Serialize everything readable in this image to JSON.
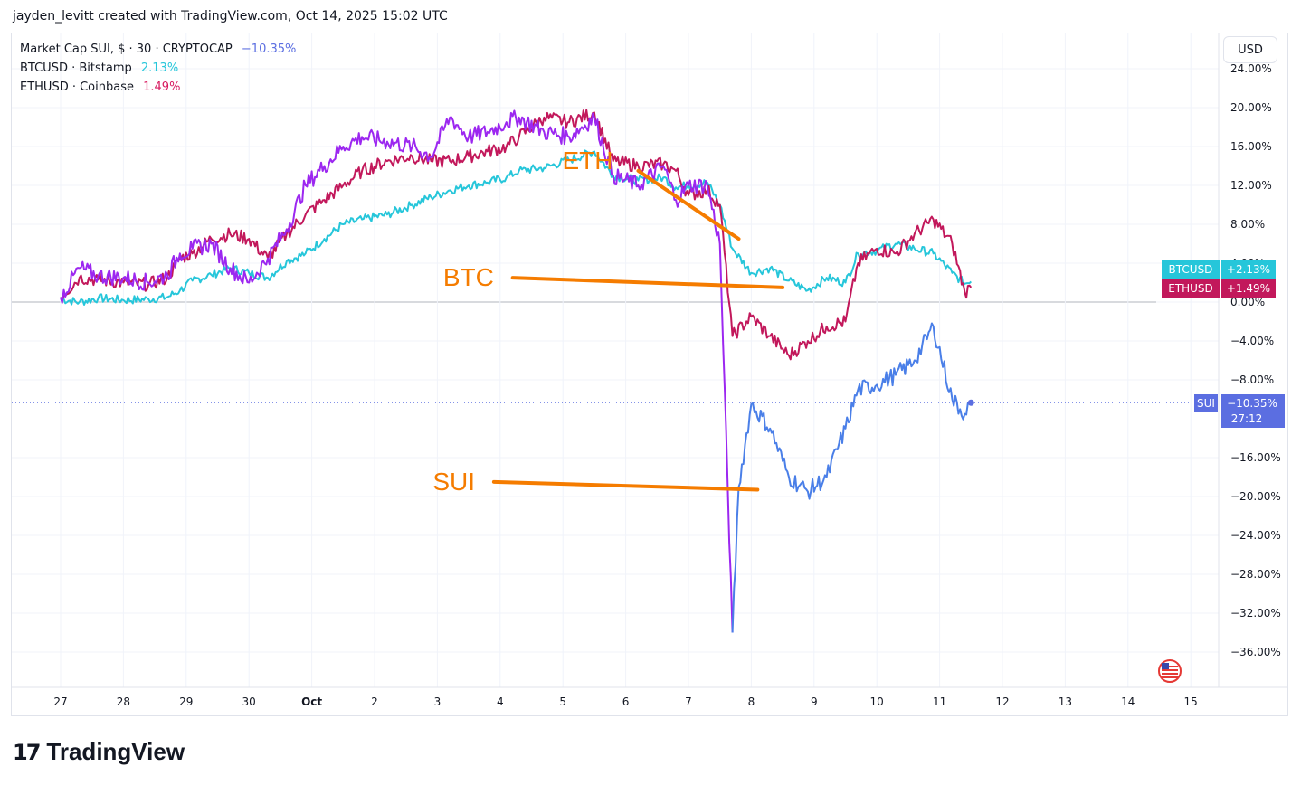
{
  "header": {
    "credit": "jayden_levitt created with TradingView.com, Oct 14, 2025 15:02 UTC"
  },
  "legend": [
    {
      "label": "Market Cap SUI, $ · 30 · CRYPTOCAP",
      "value": "−10.35%",
      "color": "#5b6ee1"
    },
    {
      "label": "BTCUSD · Bitstamp",
      "value": "2.13%",
      "color": "#26c6da"
    },
    {
      "label": "ETHUSD · Coinbase",
      "value": "1.49%",
      "color": "#d81b60"
    }
  ],
  "currency_button": "USD",
  "footer": {
    "logo_mark": "17",
    "logo_text": "TradingView"
  },
  "colors": {
    "btc": "#26c6da",
    "eth": "#c2185b",
    "eth_alt": "#9c27f0",
    "sui": "#5b6ee1",
    "annotation": "#f57c00",
    "grid": "#f0f3fa"
  },
  "flag_icon": "us-flag-icon",
  "chart_data": {
    "type": "line",
    "xlabel": "",
    "ylabel": "",
    "y_unit": "%",
    "ylim": [
      -40,
      24
    ],
    "grid": true,
    "x_ticks": [
      "27",
      "28",
      "29",
      "30",
      "Oct",
      "2",
      "3",
      "4",
      "5",
      "6",
      "7",
      "8",
      "9",
      "10",
      "11",
      "12",
      "13",
      "14",
      "15"
    ],
    "y_ticks": [
      "24.00%",
      "20.00%",
      "16.00%",
      "12.00%",
      "8.00%",
      "4.00%",
      "0.00%",
      "−4.00%",
      "−8.00%",
      "−16.00%",
      "−20.00%",
      "−24.00%",
      "−28.00%",
      "−32.00%",
      "−36.00%"
    ],
    "series": [
      {
        "name": "BTCUSD",
        "color": "#26c6da",
        "last_label": "+2.13%",
        "points": [
          [
            0,
            0.3
          ],
          [
            0.3,
            0.0
          ],
          [
            0.6,
            0.4
          ],
          [
            1.0,
            0.2
          ],
          [
            1.4,
            0.3
          ],
          [
            1.7,
            0.5
          ],
          [
            1.9,
            1.2
          ],
          [
            2.1,
            2.2
          ],
          [
            2.4,
            2.8
          ],
          [
            2.7,
            3.5
          ],
          [
            3.0,
            3.0
          ],
          [
            3.3,
            2.5
          ],
          [
            3.6,
            4.2
          ],
          [
            3.9,
            5.0
          ],
          [
            4.2,
            6.5
          ],
          [
            4.5,
            8.0
          ],
          [
            4.8,
            8.5
          ],
          [
            5.2,
            9.0
          ],
          [
            5.6,
            10.0
          ],
          [
            5.9,
            10.8
          ],
          [
            6.2,
            11.5
          ],
          [
            6.5,
            12.0
          ],
          [
            6.8,
            12.3
          ],
          [
            7.1,
            12.8
          ],
          [
            7.3,
            13.5
          ],
          [
            7.7,
            13.8
          ],
          [
            8.1,
            14.6
          ],
          [
            8.5,
            15.5
          ],
          [
            8.8,
            13.0
          ],
          [
            9.2,
            12.5
          ],
          [
            9.6,
            12.8
          ],
          [
            9.8,
            11.8
          ],
          [
            10.0,
            12.0
          ],
          [
            10.3,
            12.3
          ],
          [
            10.5,
            10.0
          ],
          [
            10.7,
            5.5
          ],
          [
            11.0,
            3.0
          ],
          [
            11.3,
            3.5
          ],
          [
            11.6,
            2.2
          ],
          [
            11.9,
            1.2
          ],
          [
            12.2,
            2.5
          ],
          [
            12.5,
            2.0
          ],
          [
            12.7,
            5.0
          ],
          [
            13.0,
            5.3
          ],
          [
            13.3,
            6.0
          ],
          [
            13.6,
            5.5
          ],
          [
            13.9,
            5.0
          ],
          [
            14.2,
            3.0
          ],
          [
            14.4,
            1.9
          ],
          [
            14.5,
            2.1
          ]
        ]
      },
      {
        "name": "ETHUSD",
        "color": "#c2185b",
        "last_label": "+1.49%",
        "points": [
          [
            0,
            0.5
          ],
          [
            0.3,
            2.5
          ],
          [
            0.6,
            2.3
          ],
          [
            1.0,
            2.0
          ],
          [
            1.4,
            1.8
          ],
          [
            1.7,
            2.5
          ],
          [
            1.9,
            4.5
          ],
          [
            2.1,
            5.0
          ],
          [
            2.4,
            6.5
          ],
          [
            2.7,
            7.0
          ],
          [
            3.0,
            6.5
          ],
          [
            3.3,
            4.5
          ],
          [
            3.6,
            7.0
          ],
          [
            3.9,
            9.0
          ],
          [
            4.2,
            10.5
          ],
          [
            4.5,
            12.0
          ],
          [
            4.8,
            13.5
          ],
          [
            5.2,
            14.5
          ],
          [
            5.6,
            15.0
          ],
          [
            5.9,
            14.5
          ],
          [
            6.2,
            14.5
          ],
          [
            6.5,
            15.0
          ],
          [
            6.8,
            15.5
          ],
          [
            7.1,
            16.0
          ],
          [
            7.3,
            17.0
          ],
          [
            7.7,
            19.0
          ],
          [
            8.1,
            18.5
          ],
          [
            8.5,
            19.5
          ],
          [
            8.8,
            14.5
          ],
          [
            9.2,
            14.0
          ],
          [
            9.6,
            14.2
          ],
          [
            9.8,
            13.5
          ],
          [
            10.0,
            11.0
          ],
          [
            10.3,
            11.5
          ],
          [
            10.5,
            10.0
          ],
          [
            10.7,
            -3.5
          ],
          [
            11.0,
            -1.5
          ],
          [
            11.3,
            -3.5
          ],
          [
            11.6,
            -5.5
          ],
          [
            11.9,
            -4.0
          ],
          [
            12.2,
            -2.5
          ],
          [
            12.5,
            -2.0
          ],
          [
            12.7,
            4.0
          ],
          [
            13.0,
            5.5
          ],
          [
            13.3,
            5.0
          ],
          [
            13.6,
            7.0
          ],
          [
            13.9,
            8.5
          ],
          [
            14.2,
            6.0
          ],
          [
            14.4,
            1.0
          ],
          [
            14.5,
            1.5
          ]
        ]
      },
      {
        "name": "SUI",
        "color": "#5b6ee1",
        "last_label": "−10.35%",
        "countdown": "27:12",
        "points": [
          [
            0,
            0.5
          ],
          [
            0.3,
            3.5
          ],
          [
            0.6,
            2.7
          ],
          [
            1.0,
            2.5
          ],
          [
            1.4,
            2.0
          ],
          [
            1.7,
            2.8
          ],
          [
            1.9,
            5.0
          ],
          [
            2.1,
            5.5
          ],
          [
            2.4,
            6.0
          ],
          [
            2.7,
            3.5
          ],
          [
            3.0,
            2.0
          ],
          [
            3.3,
            4.5
          ],
          [
            3.6,
            7.5
          ],
          [
            3.9,
            12.0
          ],
          [
            4.2,
            14.0
          ],
          [
            4.5,
            16.0
          ],
          [
            4.8,
            17.0
          ],
          [
            5.2,
            16.5
          ],
          [
            5.6,
            16.0
          ],
          [
            5.9,
            15.0
          ],
          [
            6.2,
            19.0
          ],
          [
            6.5,
            17.0
          ],
          [
            6.8,
            17.5
          ],
          [
            7.1,
            18.5
          ],
          [
            7.3,
            19.0
          ],
          [
            7.7,
            17.5
          ],
          [
            8.1,
            17.0
          ],
          [
            8.5,
            19.0
          ],
          [
            8.8,
            13.0
          ],
          [
            9.2,
            12.0
          ],
          [
            9.6,
            14.0
          ],
          [
            9.8,
            10.5
          ],
          [
            10.0,
            12.0
          ],
          [
            10.3,
            12.0
          ],
          [
            10.5,
            6.0
          ],
          [
            10.7,
            -34.0
          ],
          [
            10.8,
            -19.0
          ],
          [
            11.0,
            -10.5
          ],
          [
            11.3,
            -13.0
          ],
          [
            11.6,
            -18.0
          ],
          [
            11.9,
            -19.5
          ],
          [
            12.2,
            -18.0
          ],
          [
            12.5,
            -13.0
          ],
          [
            12.7,
            -9.0
          ],
          [
            13.0,
            -8.5
          ],
          [
            13.3,
            -7.5
          ],
          [
            13.6,
            -6.0
          ],
          [
            13.9,
            -2.5
          ],
          [
            14.2,
            -10.0
          ],
          [
            14.4,
            -11.5
          ],
          [
            14.5,
            -10.35
          ]
        ]
      }
    ],
    "annotations": [
      {
        "text": "ETH",
        "line": [
          [
            10.8,
            6.5
          ],
          [
            9.2,
            13.5
          ]
        ]
      },
      {
        "text": "BTC",
        "line": [
          [
            7.2,
            2.5
          ],
          [
            11.5,
            1.5
          ]
        ]
      },
      {
        "text": "SUI",
        "line": [
          [
            6.9,
            -18.5
          ],
          [
            11.1,
            -19.3
          ]
        ]
      }
    ]
  }
}
